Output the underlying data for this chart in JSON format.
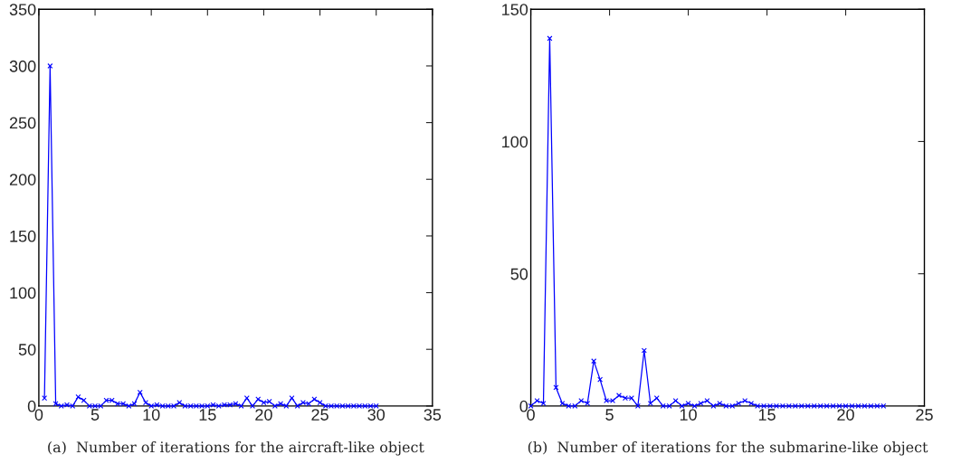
{
  "chart_data": [
    {
      "type": "line",
      "xlabel": "(a)  Number of iterations for the aircraft-like object",
      "xlim": [
        0,
        35
      ],
      "xticks": [
        0,
        5,
        10,
        15,
        20,
        25,
        30,
        35
      ],
      "ylim": [
        0,
        350
      ],
      "yticks": [
        0,
        50,
        100,
        150,
        200,
        250,
        300,
        350
      ],
      "marker": "cross",
      "line_style": "solid",
      "grid": false,
      "series": [
        {
          "color": "#0000ff",
          "x": [
            0.5,
            1.0,
            1.5,
            2.0,
            2.5,
            3.0,
            3.5,
            4.0,
            4.5,
            5.0,
            5.5,
            6.0,
            6.5,
            7.0,
            7.5,
            8.0,
            8.5,
            9.0,
            9.5,
            10.0,
            10.5,
            11.0,
            11.5,
            12.0,
            12.5,
            13.0,
            13.5,
            14.0,
            14.5,
            15.0,
            15.5,
            16.0,
            16.5,
            17.0,
            17.5,
            18.0,
            18.5,
            19.0,
            19.5,
            20.0,
            20.5,
            21.0,
            21.5,
            22.0,
            22.5,
            23.0,
            23.5,
            24.0,
            24.5,
            25.0,
            25.5,
            26.0,
            26.5,
            27.0,
            27.5,
            28.0,
            28.5,
            29.0,
            29.5,
            30.0
          ],
          "values": [
            7,
            300,
            2,
            0,
            1,
            0,
            8,
            5,
            0,
            0,
            0,
            5,
            5,
            2,
            2,
            0,
            2,
            12,
            3,
            0,
            1,
            0,
            0,
            0,
            3,
            0,
            0,
            0,
            0,
            0,
            1,
            0,
            1,
            1,
            2,
            0,
            7,
            0,
            6,
            3,
            4,
            0,
            2,
            0,
            7,
            0,
            3,
            2,
            6,
            3,
            0,
            0,
            0,
            0,
            0,
            0,
            0,
            0,
            0,
            0
          ]
        }
      ]
    },
    {
      "type": "line",
      "xlabel": "(b)  Number of iterations for the submarine-like object",
      "xlim": [
        0,
        25
      ],
      "xticks": [
        0,
        5,
        10,
        15,
        20,
        25
      ],
      "ylim": [
        0,
        150
      ],
      "yticks": [
        0,
        50,
        100,
        150
      ],
      "marker": "cross",
      "line_style": "solid",
      "grid": false,
      "series": [
        {
          "color": "#0000ff",
          "x": [
            0,
            0.4,
            0.8,
            1.2,
            1.6,
            2.0,
            2.4,
            2.8,
            3.2,
            3.6,
            4.0,
            4.4,
            4.8,
            5.2,
            5.6,
            6.0,
            6.4,
            6.8,
            7.2,
            7.6,
            8.0,
            8.4,
            8.8,
            9.2,
            9.6,
            10.0,
            10.4,
            10.8,
            11.2,
            11.6,
            12.0,
            12.4,
            12.8,
            13.2,
            13.6,
            14.0,
            14.4,
            14.8,
            15.2,
            15.6,
            16.0,
            16.4,
            16.8,
            17.2,
            17.6,
            18.0,
            18.4,
            18.8,
            19.2,
            19.6,
            20.0,
            20.4,
            20.8,
            21.2,
            21.6,
            22.0,
            22.4
          ],
          "values": [
            0,
            2,
            1,
            139,
            7,
            1,
            0,
            0,
            2,
            1,
            17,
            10,
            2,
            2,
            4,
            3,
            3,
            0,
            21,
            1,
            3,
            0,
            0,
            2,
            0,
            1,
            0,
            1,
            2,
            0,
            1,
            0,
            0,
            1,
            2,
            1,
            0,
            0,
            0,
            0,
            0,
            0,
            0,
            0,
            0,
            0,
            0,
            0,
            0,
            0,
            0,
            0,
            0,
            0,
            0,
            0,
            0
          ]
        }
      ]
    }
  ]
}
